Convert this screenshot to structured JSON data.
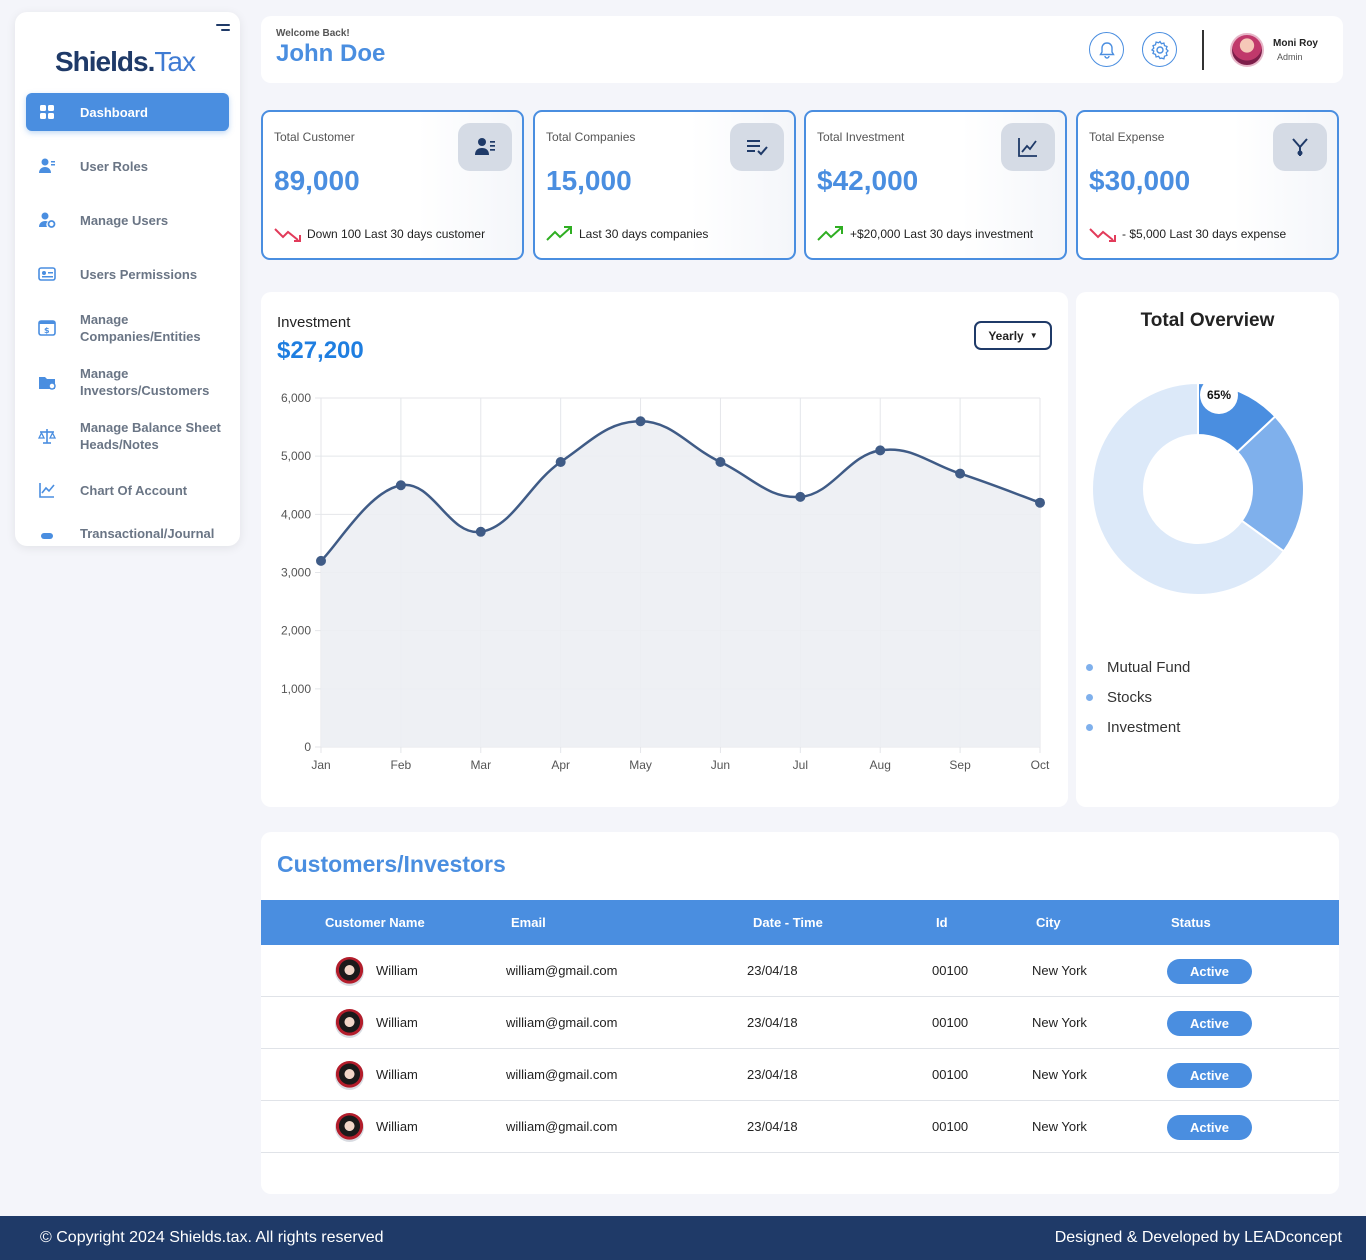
{
  "brand": {
    "part1": "Shields.",
    "part2": "Tax"
  },
  "sidebar": {
    "items": [
      {
        "label": "Dashboard",
        "icon": "dashboard-grid-icon",
        "active": true
      },
      {
        "label": "User Roles",
        "icon": "user-roles-icon"
      },
      {
        "label": "Manage Users",
        "icon": "manage-users-icon"
      },
      {
        "label": "Users Permissions",
        "icon": "permissions-icon"
      },
      {
        "label": "Manage\nCompanies/Entities",
        "icon": "companies-icon"
      },
      {
        "label": "Manage\nInvestors/Customers",
        "icon": "investors-icon"
      },
      {
        "label": "Manage Balance Sheet\nHeads/Notes",
        "icon": "balance-scale-icon"
      },
      {
        "label": "Chart Of Account",
        "icon": "chart-line-icon"
      },
      {
        "label": "Transactional/Journal",
        "icon": "journal-icon"
      }
    ]
  },
  "header": {
    "welcome": "Welcome Back!",
    "user_name": "John Doe",
    "profile_name": "Moni Roy",
    "profile_role": "Admin"
  },
  "stats": [
    {
      "title": "Total Customer",
      "value": "89,000",
      "trend": "down",
      "note": "Down 100 Last 30 days customer",
      "icon": "customer-card-icon"
    },
    {
      "title": "Total Companies",
      "value": "15,000",
      "trend": "up",
      "note": "Last 30 days companies",
      "icon": "list-check-icon"
    },
    {
      "title": "Total Investment",
      "value": "$42,000",
      "trend": "up",
      "note": "+$20,000 Last 30 days investment",
      "icon": "line-chart-icon"
    },
    {
      "title": "Total Expense",
      "value": "$30,000",
      "trend": "down",
      "note": "- $5,000 Last 30 days expense",
      "icon": "merge-arrows-icon"
    }
  ],
  "investment": {
    "title": "Investment",
    "value": "$27,200",
    "period": "Yearly"
  },
  "chart_data": {
    "type": "area",
    "categories": [
      "Jan",
      "Feb",
      "Mar",
      "Apr",
      "May",
      "Jun",
      "Jul",
      "Aug",
      "Sep",
      "Oct"
    ],
    "series": [
      {
        "values": [
          3200,
          4500,
          3700,
          4900,
          5600,
          4900,
          4300,
          5100,
          4700,
          4200
        ]
      }
    ],
    "ylim": [
      0,
      6000
    ],
    "yticks": [
      0,
      1000,
      2000,
      3000,
      4000,
      5000,
      6000
    ],
    "ytick_labels": [
      "0",
      "1,000",
      "2,000",
      "3,000",
      "4,000",
      "5,000",
      "6,000"
    ],
    "grid": true,
    "line_color": "#3f5b86",
    "fill_color": "#eceef3"
  },
  "overview": {
    "title": "Total Overview",
    "slices": [
      {
        "name": "Mutual Fund",
        "value": 13,
        "color": "#4a8ee0"
      },
      {
        "name": "Stocks",
        "value": 22,
        "color": "#7fb0ec"
      },
      {
        "name": "Investment",
        "value": 65,
        "color": "#dce9f9"
      }
    ],
    "label": "65%",
    "legend_color": "#7fb0ec"
  },
  "customers": {
    "title": "Customers/Investors",
    "columns": [
      "Customer Name",
      "Email",
      "Date - Time",
      "Id",
      "City",
      "Status"
    ],
    "rows": [
      {
        "name": "William",
        "email": "william@gmail.com",
        "date": "23/04/18",
        "id": "00100",
        "city": "New York",
        "status": "Active"
      },
      {
        "name": "William",
        "email": "william@gmail.com",
        "date": "23/04/18",
        "id": "00100",
        "city": "New York",
        "status": "Active"
      },
      {
        "name": "William",
        "email": "william@gmail.com",
        "date": "23/04/18",
        "id": "00100",
        "city": "New York",
        "status": "Active"
      },
      {
        "name": "William",
        "email": "william@gmail.com",
        "date": "23/04/18",
        "id": "00100",
        "city": "New York",
        "status": "Active"
      }
    ]
  },
  "footer": {
    "copyright": "© Copyright 2024 Shields.tax. All rights reserved",
    "credit": "Designed & Developed by LEADconcept"
  }
}
